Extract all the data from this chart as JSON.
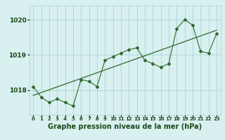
{
  "x": [
    0,
    1,
    2,
    3,
    4,
    5,
    6,
    7,
    8,
    9,
    10,
    11,
    12,
    13,
    14,
    15,
    16,
    17,
    18,
    19,
    20,
    21,
    22,
    23
  ],
  "y": [
    1018.1,
    1017.8,
    1017.65,
    1017.75,
    1017.65,
    1017.55,
    1018.3,
    1018.25,
    1018.1,
    1018.85,
    1018.95,
    1019.05,
    1019.15,
    1019.2,
    1018.85,
    1018.75,
    1018.65,
    1018.75,
    1019.75,
    1020.0,
    1019.85,
    1019.1,
    1019.05,
    1019.6
  ],
  "trend_x": [
    0,
    23
  ],
  "trend_y": [
    1017.85,
    1019.7
  ],
  "line_color": "#2d6a2d",
  "bg_color": "#d8f0f0",
  "grid_color": "#aad4d4",
  "axis_label": "Graphe pression niveau de la mer (hPa)",
  "yticks": [
    1018,
    1019,
    1020
  ],
  "ylim": [
    1017.3,
    1020.4
  ],
  "xlim": [
    -0.5,
    23.5
  ],
  "label_color": "#1a4a1a"
}
